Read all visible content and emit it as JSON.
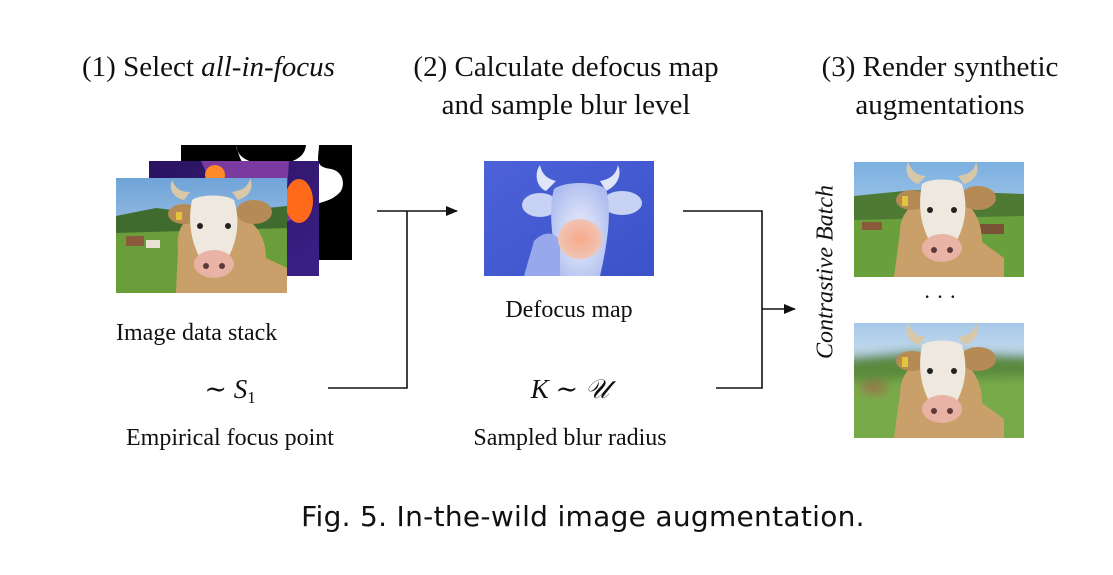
{
  "steps": {
    "step1": {
      "prefix": "(1) Select ",
      "emphasis": "all-in-focus"
    },
    "step2": {
      "line1": "(2) Calculate defocus map",
      "line2": "and sample blur level"
    },
    "step3": {
      "line1": "(3) Render synthetic",
      "line2": "augmentations"
    }
  },
  "column1": {
    "label": "Image data stack",
    "formula": {
      "tilde": "∼",
      "symbol": "S",
      "subscript": "1"
    },
    "formula_label": "Empirical focus point"
  },
  "column2": {
    "label": "Defocus map",
    "formula": {
      "symbol": "K",
      "tilde": "∼",
      "distribution": "𝒰"
    },
    "formula_label": "Sampled blur radius"
  },
  "column3": {
    "vertical_label": "Contrastive Batch",
    "ellipsis": "· · ·"
  },
  "caption": "Fig. 5.  In-the-wild image augmentation."
}
